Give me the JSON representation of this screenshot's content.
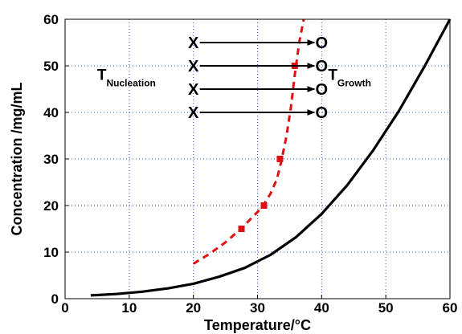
{
  "chart_data": {
    "type": "line",
    "xlabel": "Temperature/°C",
    "ylabel": "Concentration /mg/mL",
    "xlim": [
      0,
      60
    ],
    "ylim": [
      0,
      60
    ],
    "xticks": [
      0,
      10,
      20,
      30,
      40,
      50,
      60
    ],
    "yticks": [
      0,
      10,
      20,
      30,
      40,
      50,
      60
    ],
    "grid": true,
    "grid_style": "dotted",
    "series": [
      {
        "style": "solid",
        "color": "#000000",
        "x": [
          4,
          8,
          12,
          16,
          20,
          24,
          28,
          32,
          36,
          40,
          44,
          48,
          52,
          56,
          60
        ],
        "y": [
          0.7,
          1.0,
          1.5,
          2.2,
          3.2,
          4.7,
          6.6,
          9.4,
          13.2,
          18.2,
          24.4,
          31.8,
          40.2,
          49.8,
          60
        ]
      },
      {
        "style": "dashed",
        "color": "#dd1111",
        "x": [
          20,
          22.5,
          25,
          27.5,
          30,
          31,
          32,
          33,
          33.7,
          34.5,
          35.2,
          35.8,
          36.5,
          37.2
        ],
        "y": [
          7.5,
          9.6,
          12.1,
          15.1,
          18.6,
          20.2,
          22.5,
          25.6,
          29.4,
          34.8,
          41.0,
          48.0,
          55.0,
          60
        ]
      },
      {
        "style": "markers",
        "color": "#dd1111",
        "marker": "square",
        "x": [
          27.5,
          31,
          33.5,
          35.8
        ],
        "y": [
          15,
          20,
          30,
          50
        ]
      }
    ],
    "annotations": {
      "start_mark": "X",
      "end_mark": "O",
      "arrow_x_start": 20,
      "arrow_x_end": 40,
      "arrow_y": [
        55,
        50,
        45,
        40
      ],
      "nucleation": {
        "big": "T",
        "sub": "Nucleation",
        "x": 5,
        "y": 47
      },
      "growth": {
        "big": "T",
        "sub": "Growth",
        "x": 41,
        "y": 47
      }
    }
  }
}
